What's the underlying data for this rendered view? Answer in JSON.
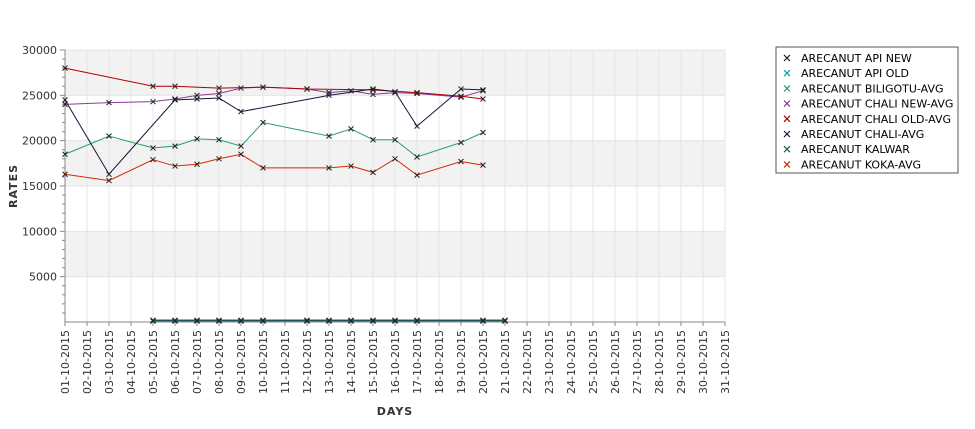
{
  "chart_data": {
    "type": "line",
    "xlabel": "DAYS",
    "ylabel": "RATES",
    "ylim": [
      0,
      30000
    ],
    "yticks": [
      5000,
      10000,
      15000,
      20000,
      25000,
      30000
    ],
    "ytick_labels": [
      "5000",
      "10000",
      "15000",
      "20000",
      "25000",
      "30000"
    ],
    "x_categories": [
      "01-10-2015",
      "02-10-2015",
      "03-10-2015",
      "04-10-2015",
      "05-10-2015",
      "06-10-2015",
      "07-10-2015",
      "08-10-2015",
      "09-10-2015",
      "10-10-2015",
      "11-10-2015",
      "12-10-2015",
      "13-10-2015",
      "14-10-2015",
      "15-10-2015",
      "16-10-2015",
      "17-10-2015",
      "18-10-2015",
      "19-10-2015",
      "20-10-2015",
      "21-10-2015",
      "22-10-2015",
      "23-10-2015",
      "24-10-2015",
      "25-10-2015",
      "26-10-2015",
      "27-10-2015",
      "28-10-2015",
      "29-10-2015",
      "30-10-2015",
      "31-10-2015"
    ],
    "grid": true,
    "legend_position": "right",
    "series": [
      {
        "name": "ARECANUT API NEW",
        "color": "#1a1a1a",
        "points": [
          [
            "05-10-2015",
            200
          ],
          [
            "06-10-2015",
            200
          ],
          [
            "07-10-2015",
            200
          ],
          [
            "08-10-2015",
            200
          ],
          [
            "09-10-2015",
            200
          ],
          [
            "10-10-2015",
            200
          ],
          [
            "12-10-2015",
            200
          ],
          [
            "13-10-2015",
            200
          ],
          [
            "14-10-2015",
            200
          ],
          [
            "15-10-2015",
            200
          ],
          [
            "16-10-2015",
            200
          ],
          [
            "17-10-2015",
            200
          ],
          [
            "20-10-2015",
            200
          ],
          [
            "21-10-2015",
            200
          ]
        ]
      },
      {
        "name": "ARECANUT API OLD",
        "color": "#00a0b0",
        "points": [
          [
            "05-10-2015",
            100
          ],
          [
            "06-10-2015",
            100
          ],
          [
            "07-10-2015",
            100
          ],
          [
            "08-10-2015",
            100
          ],
          [
            "09-10-2015",
            100
          ],
          [
            "10-10-2015",
            100
          ],
          [
            "12-10-2015",
            100
          ],
          [
            "13-10-2015",
            100
          ],
          [
            "14-10-2015",
            100
          ],
          [
            "15-10-2015",
            100
          ],
          [
            "16-10-2015",
            100
          ],
          [
            "17-10-2015",
            100
          ],
          [
            "20-10-2015",
            100
          ],
          [
            "21-10-2015",
            100
          ]
        ]
      },
      {
        "name": "ARECANUT BILIGOTU-AVG",
        "color": "#2a9d6a",
        "points": [
          [
            "01-10-2015",
            18500
          ],
          [
            "03-10-2015",
            20500
          ],
          [
            "05-10-2015",
            19200
          ],
          [
            "06-10-2015",
            19400
          ],
          [
            "07-10-2015",
            20200
          ],
          [
            "08-10-2015",
            20100
          ],
          [
            "09-10-2015",
            19400
          ],
          [
            "10-10-2015",
            22000
          ],
          [
            "13-10-2015",
            20500
          ],
          [
            "14-10-2015",
            21300
          ],
          [
            "15-10-2015",
            20100
          ],
          [
            "16-10-2015",
            20100
          ],
          [
            "17-10-2015",
            18200
          ],
          [
            "19-10-2015",
            19800
          ],
          [
            "20-10-2015",
            20900
          ]
        ]
      },
      {
        "name": "ARECANUT CHALI NEW-AVG",
        "color": "#8a3a9a",
        "points": [
          [
            "01-10-2015",
            24000
          ],
          [
            "03-10-2015",
            24200
          ],
          [
            "05-10-2015",
            24300
          ],
          [
            "06-10-2015",
            24600
          ],
          [
            "07-10-2015",
            25000
          ],
          [
            "08-10-2015",
            25200
          ],
          [
            "09-10-2015",
            25800
          ],
          [
            "10-10-2015",
            25900
          ],
          [
            "12-10-2015",
            25700
          ],
          [
            "13-10-2015",
            25300
          ],
          [
            "14-10-2015",
            25500
          ],
          [
            "15-10-2015",
            25100
          ],
          [
            "16-10-2015",
            25300
          ],
          [
            "17-10-2015",
            25200
          ],
          [
            "19-10-2015",
            24800
          ],
          [
            "20-10-2015",
            25500
          ]
        ]
      },
      {
        "name": "ARECANUT CHALI OLD-AVG",
        "color": "#b00000",
        "points": [
          [
            "01-10-2015",
            28000
          ],
          [
            "05-10-2015",
            26000
          ],
          [
            "06-10-2015",
            26000
          ],
          [
            "08-10-2015",
            25800
          ],
          [
            "10-10-2015",
            25900
          ],
          [
            "12-10-2015",
            25700
          ],
          [
            "15-10-2015",
            25600
          ],
          [
            "17-10-2015",
            25300
          ],
          [
            "19-10-2015",
            24900
          ],
          [
            "20-10-2015",
            24600
          ]
        ]
      },
      {
        "name": "ARECANUT CHALI-AVG",
        "color": "#14143c",
        "points": [
          [
            "01-10-2015",
            24500
          ],
          [
            "03-10-2015",
            16300
          ],
          [
            "06-10-2015",
            24500
          ],
          [
            "07-10-2015",
            24600
          ],
          [
            "08-10-2015",
            24700
          ],
          [
            "09-10-2015",
            23200
          ],
          [
            "13-10-2015",
            25000
          ],
          [
            "15-10-2015",
            25700
          ],
          [
            "16-10-2015",
            25400
          ],
          [
            "17-10-2015",
            21600
          ],
          [
            "19-10-2015",
            25700
          ],
          [
            "20-10-2015",
            25600
          ]
        ]
      },
      {
        "name": "ARECANUT KALWAR",
        "color": "#1d5e5e",
        "points": [
          [
            "05-10-2015",
            150
          ],
          [
            "06-10-2015",
            150
          ],
          [
            "07-10-2015",
            150
          ],
          [
            "08-10-2015",
            150
          ],
          [
            "09-10-2015",
            150
          ],
          [
            "10-10-2015",
            150
          ],
          [
            "12-10-2015",
            150
          ],
          [
            "13-10-2015",
            150
          ],
          [
            "14-10-2015",
            150
          ],
          [
            "15-10-2015",
            150
          ],
          [
            "16-10-2015",
            150
          ],
          [
            "17-10-2015",
            150
          ],
          [
            "20-10-2015",
            150
          ],
          [
            "21-10-2015",
            150
          ]
        ]
      },
      {
        "name": "ARECANUT KOKA-AVG",
        "color": "#d42a00",
        "points": [
          [
            "01-10-2015",
            16300
          ],
          [
            "03-10-2015",
            15600
          ],
          [
            "05-10-2015",
            17900
          ],
          [
            "06-10-2015",
            17200
          ],
          [
            "07-10-2015",
            17400
          ],
          [
            "08-10-2015",
            18000
          ],
          [
            "09-10-2015",
            18500
          ],
          [
            "10-10-2015",
            17000
          ],
          [
            "13-10-2015",
            17000
          ],
          [
            "14-10-2015",
            17200
          ],
          [
            "15-10-2015",
            16500
          ],
          [
            "16-10-2015",
            18000
          ],
          [
            "17-10-2015",
            16200
          ],
          [
            "19-10-2015",
            17700
          ],
          [
            "20-10-2015",
            17300
          ]
        ]
      }
    ]
  }
}
